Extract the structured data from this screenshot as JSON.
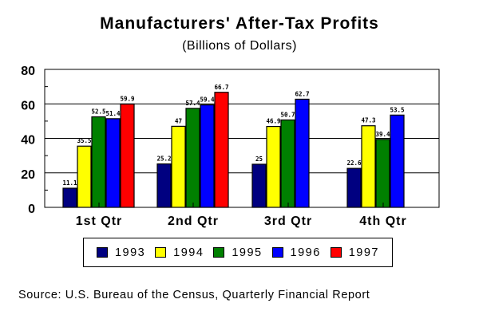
{
  "chart_data": {
    "type": "bar",
    "title": "Manufacturers' After-Tax Profits",
    "subtitle": "(Billions of Dollars)",
    "xlabel": "",
    "ylabel": "",
    "ylim": [
      0,
      80
    ],
    "yticks": [
      0,
      20,
      40,
      60,
      80
    ],
    "ytick_labels": [
      "0",
      "20",
      "40",
      "60",
      "80"
    ],
    "grid": true,
    "legend_position": "bottom",
    "categories": [
      "1st Qtr",
      "2nd Qtr",
      "3rd Qtr",
      "4th Qtr"
    ],
    "series": [
      {
        "name": "1993",
        "color": "#000080",
        "values": [
          11.1,
          25.2,
          25,
          22.6
        ],
        "labels": [
          "11.1",
          "25.2",
          "25",
          "22.6"
        ]
      },
      {
        "name": "1994",
        "color": "#ffff00",
        "values": [
          35.5,
          47,
          46.9,
          47.3
        ],
        "labels": [
          "35.5",
          "47",
          "46.9",
          "47.3"
        ]
      },
      {
        "name": "1995",
        "color": "#008000",
        "values": [
          52.5,
          57.4,
          50.7,
          39.4
        ],
        "labels": [
          "52.5",
          "57.4",
          "50.7",
          "39.4"
        ]
      },
      {
        "name": "1996",
        "color": "#0000ff",
        "values": [
          51.4,
          59.4,
          62.7,
          53.5
        ],
        "labels": [
          "51.4",
          "59.4",
          "62.7",
          "53.5"
        ]
      },
      {
        "name": "1997",
        "color": "#ff0000",
        "values": [
          59.9,
          66.7,
          null,
          null
        ],
        "labels": [
          "59.9",
          "66.7",
          null,
          null
        ]
      }
    ],
    "source": "Source:  U.S. Bureau of the Census, Quarterly Financial Report"
  }
}
